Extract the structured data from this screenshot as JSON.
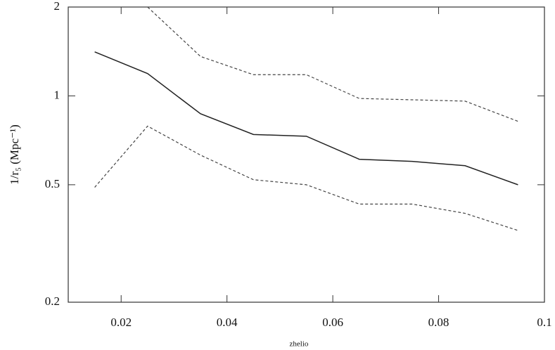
{
  "chart_data": {
    "type": "line",
    "x_label": "zhelio",
    "y_label": "1/r₅ (Mpc⁻¹)",
    "x": [
      0.015,
      0.025,
      0.035,
      0.045,
      0.055,
      0.065,
      0.075,
      0.085,
      0.095
    ],
    "series": [
      {
        "color": "#222222",
        "dash": "solid",
        "values": [
          1.41,
          1.19,
          0.87,
          0.74,
          0.73,
          0.61,
          0.6,
          0.58,
          0.5
        ]
      },
      {
        "color": "#444444",
        "dash": "dashed",
        "values": [
          null,
          2.0,
          1.36,
          1.18,
          1.18,
          0.98,
          0.97,
          0.96,
          0.82
        ]
      },
      {
        "color": "#444444",
        "dash": "dashed",
        "values": [
          0.49,
          0.79,
          0.63,
          0.52,
          0.5,
          0.43,
          0.43,
          0.4,
          0.35
        ]
      }
    ],
    "xlim": [
      0.01,
      0.1
    ],
    "xticks": [
      0.02,
      0.04,
      0.06,
      0.08,
      0.1
    ],
    "ylim": [
      0.2,
      2
    ],
    "yticks": [
      0.2,
      0.5,
      1,
      2
    ],
    "log_y": true
  }
}
